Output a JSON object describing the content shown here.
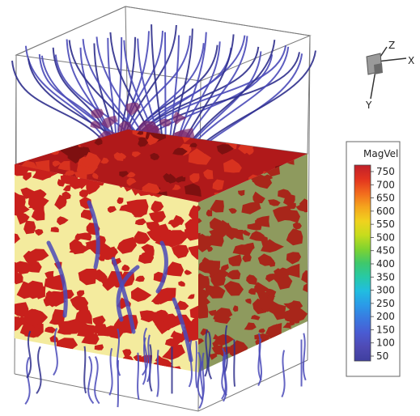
{
  "axes": {
    "z": "Z",
    "x": "X",
    "y": "Y"
  },
  "legend": {
    "title": "MagVel",
    "ticks": [
      "750",
      "700",
      "650",
      "600",
      "550",
      "500",
      "450",
      "400",
      "350",
      "300",
      "250",
      "200",
      "150",
      "100",
      "50"
    ],
    "gradient": [
      "#c0202a",
      "#e2331f",
      "#f26a1d",
      "#f5a51d",
      "#f0d21e",
      "#c6dc1d",
      "#7fd330",
      "#3fc86b",
      "#27c9a6",
      "#21bde0",
      "#2a9ae8",
      "#3a78e0",
      "#4a5bd2",
      "#4f4ab4",
      "#3f3f9e"
    ]
  },
  "colors": {
    "field_line": "#4a4ab8",
    "field_line_dark": "#2f2f8c",
    "top_surface": "#b0191a",
    "front_base": "#f4eb9e",
    "front_patch": "#c8201c",
    "right_base": "#8e9a5e",
    "right_patch": "#a8261a",
    "box_edge": "#7a7a7a"
  }
}
